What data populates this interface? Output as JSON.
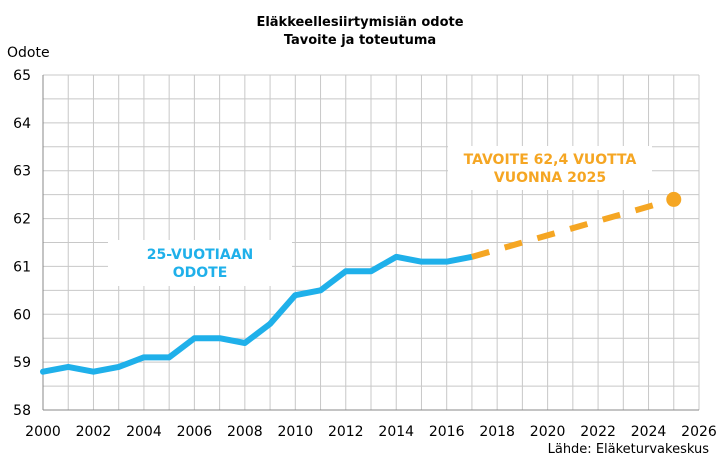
{
  "chart_data": {
    "type": "line",
    "title": "Eläkkeellesiirtymisiän odote",
    "subtitle": "Tavoite ja toteutuma",
    "ylabel": "Odote",
    "xlabel": "",
    "source": "Lähde: Eläketurvakeskus",
    "xlim": [
      2000,
      2026
    ],
    "ylim": [
      58,
      65
    ],
    "x_ticks": [
      "2000",
      "2002",
      "2004",
      "2006",
      "2008",
      "2010",
      "2012",
      "2014",
      "2016",
      "2018",
      "2020",
      "2022",
      "2024",
      "2026"
    ],
    "y_ticks": [
      "58",
      "59",
      "60",
      "61",
      "62",
      "63",
      "64",
      "65"
    ],
    "grid": true,
    "series": [
      {
        "name": "25-VUOTIAAN ODOTE",
        "color": "#1FB0EA",
        "style": "solid",
        "x": [
          2000,
          2001,
          2002,
          2003,
          2004,
          2005,
          2006,
          2007,
          2008,
          2009,
          2010,
          2011,
          2012,
          2013,
          2014,
          2015,
          2016,
          2017
        ],
        "y": [
          58.8,
          58.9,
          58.8,
          58.9,
          59.1,
          59.1,
          59.5,
          59.5,
          59.4,
          59.8,
          60.4,
          60.5,
          60.9,
          60.9,
          61.2,
          61.1,
          61.1,
          61.2
        ]
      },
      {
        "name": "TAVOITE 62,4 VUOTTA VUONNA 2025",
        "color": "#F5A623",
        "style": "dashed",
        "x": [
          2017,
          2025
        ],
        "y": [
          61.2,
          62.4
        ],
        "end_marker": true
      }
    ],
    "annotations": {
      "actual_line1": "25-VUOTIAAN",
      "actual_line2": "ODOTE",
      "target_line1": "TAVOITE 62,4 VUOTTA",
      "target_line2": "VUONNA 2025"
    }
  }
}
